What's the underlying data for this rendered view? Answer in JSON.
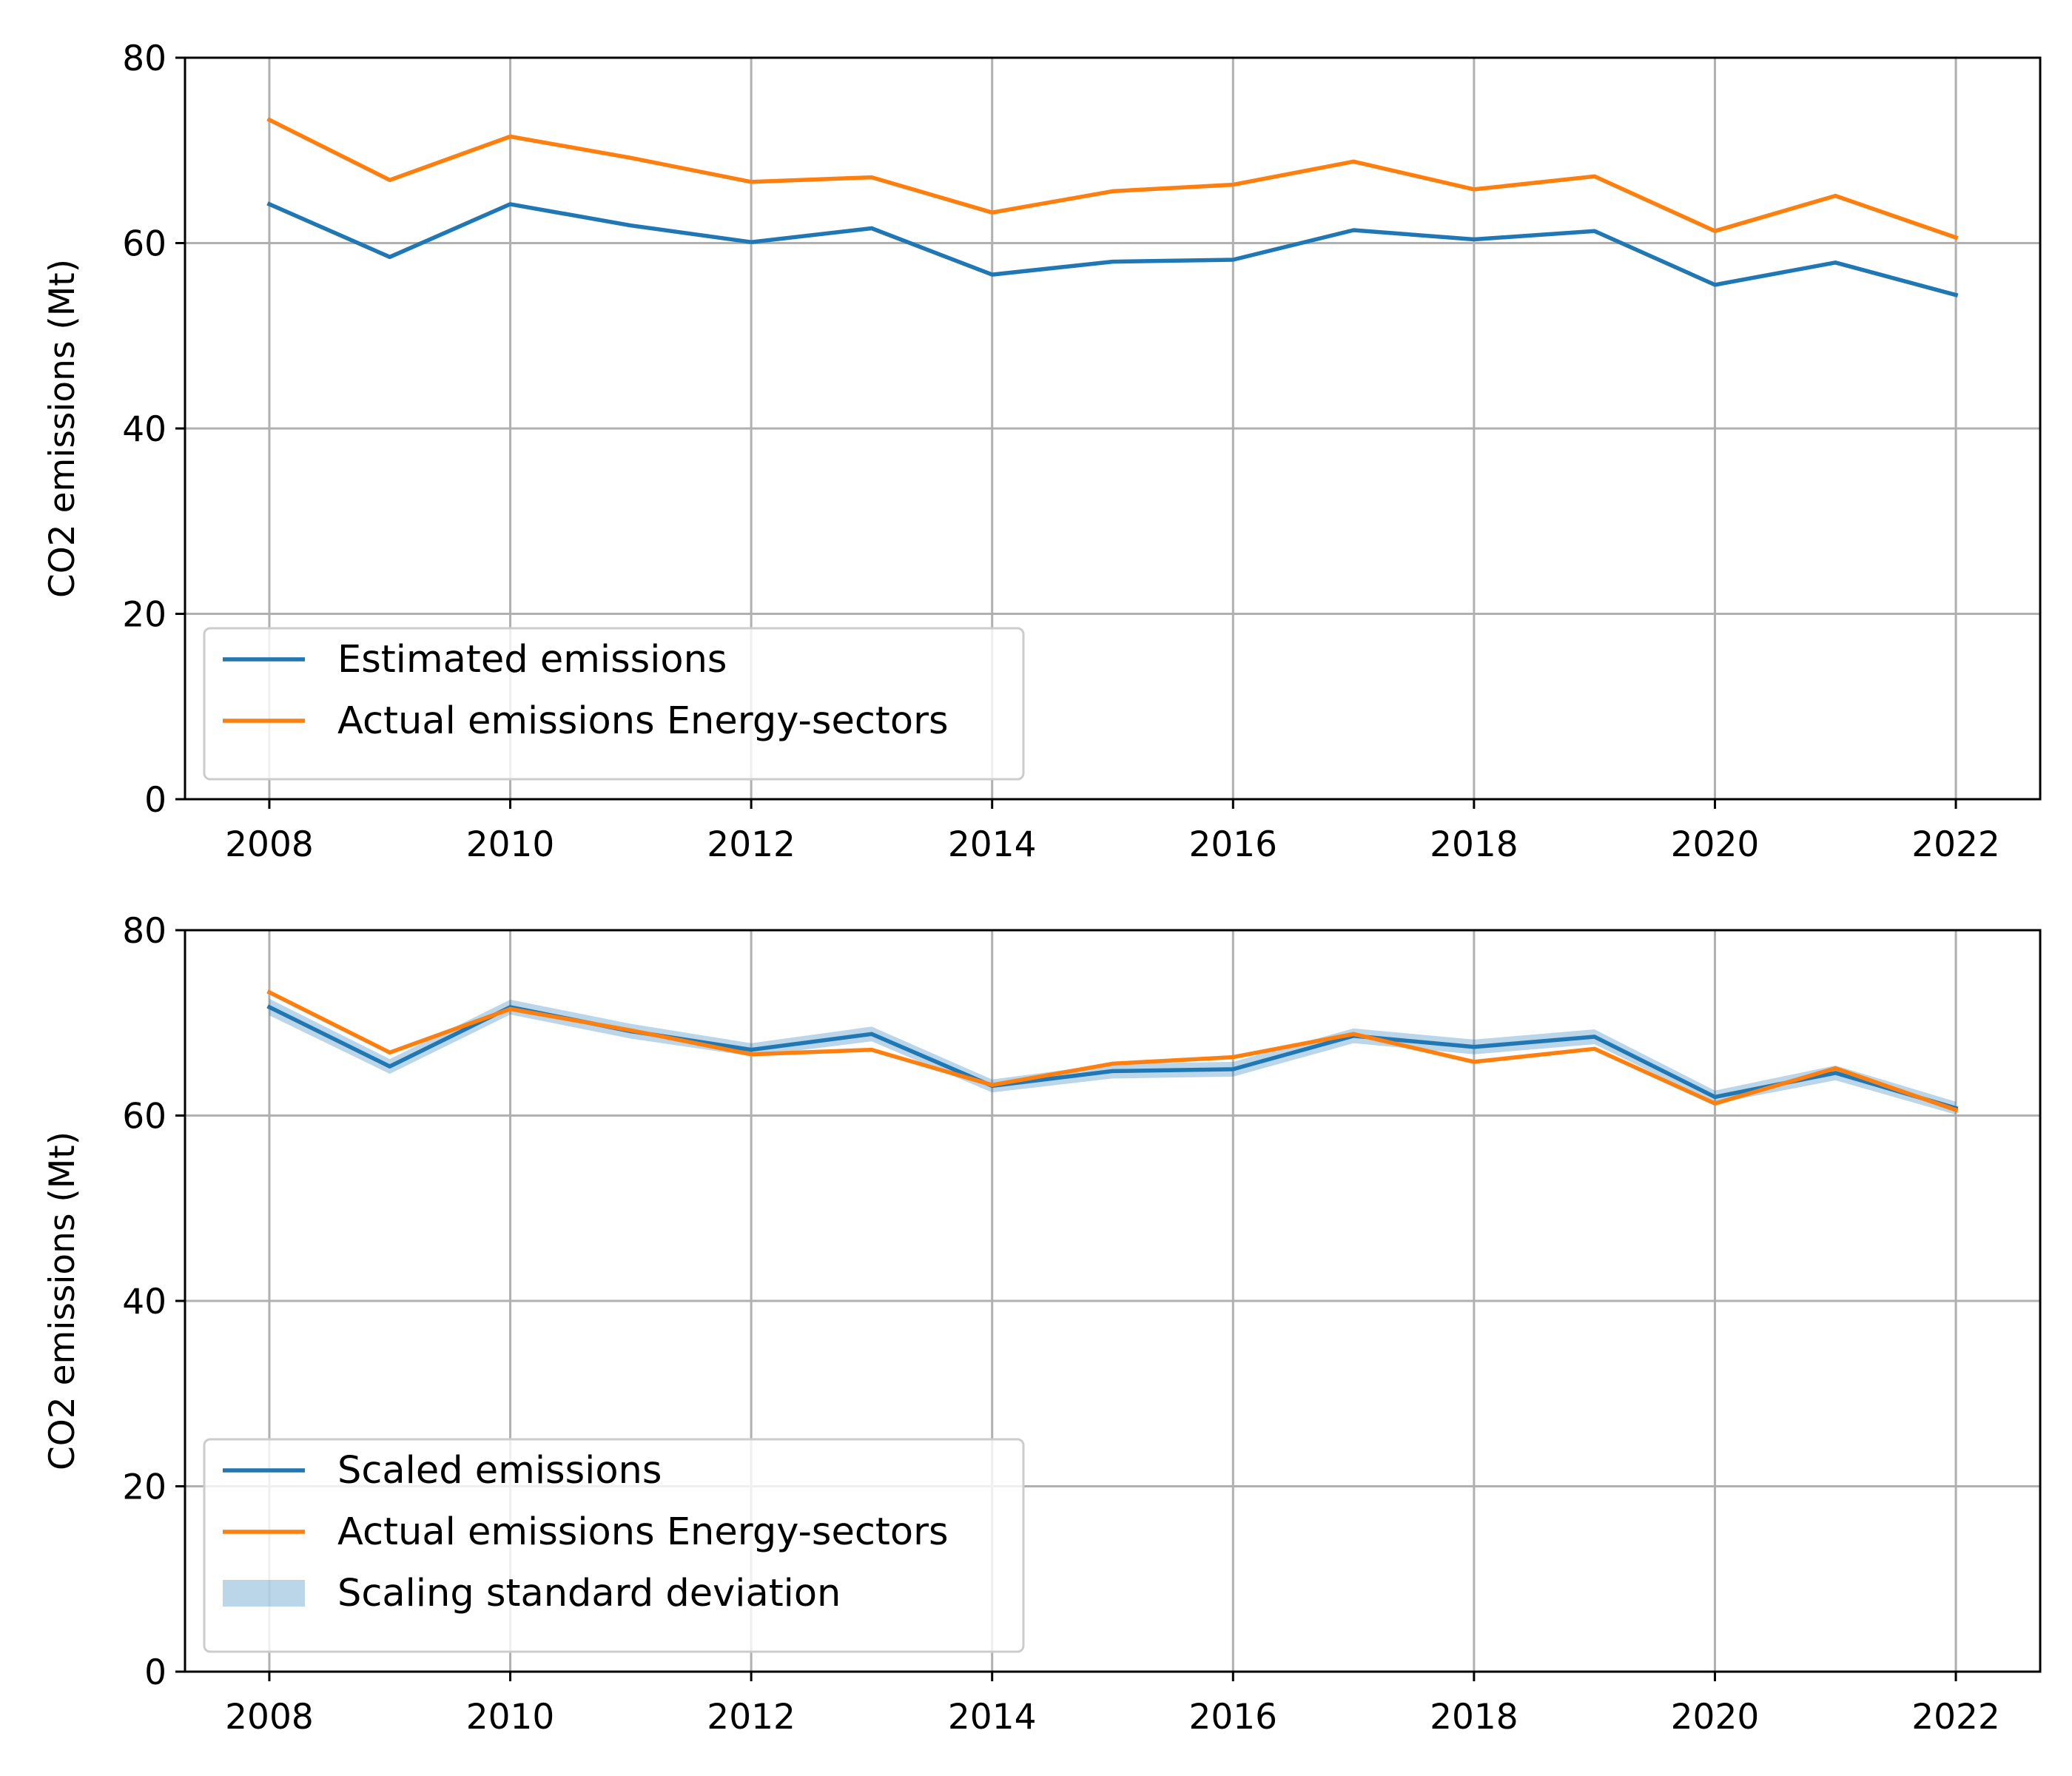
{
  "chart_data": [
    {
      "type": "line",
      "title": "",
      "xlabel": "",
      "ylabel": "CO2 emissions (Mt)",
      "xlim": [
        2007.3,
        2022.7
      ],
      "ylim": [
        0,
        80
      ],
      "xticks": [
        "2008",
        "2010",
        "2012",
        "2014",
        "2016",
        "2018",
        "2020",
        "2022"
      ],
      "yticks": [
        "0",
        "20",
        "40",
        "60",
        "80"
      ],
      "grid": true,
      "legend_position": "lower-left",
      "x": [
        2008,
        2009,
        2010,
        2011,
        2012,
        2013,
        2014,
        2015,
        2016,
        2017,
        2018,
        2019,
        2020,
        2021,
        2022
      ],
      "series": [
        {
          "name": "Estimated emissions",
          "color": "#1f77b4",
          "values": [
            64.2,
            58.5,
            64.2,
            61.9,
            60.1,
            61.6,
            56.6,
            58.0,
            58.2,
            61.4,
            60.4,
            61.3,
            55.5,
            57.9,
            54.4
          ]
        },
        {
          "name": "Actual emissions Energy-sectors",
          "color": "#ff7f0e",
          "values": [
            73.3,
            66.8,
            71.5,
            69.2,
            66.6,
            67.1,
            63.3,
            65.6,
            66.3,
            68.8,
            65.8,
            67.2,
            61.3,
            65.1,
            60.6
          ]
        }
      ]
    },
    {
      "type": "line",
      "title": "",
      "xlabel": "",
      "ylabel": "CO2 emissions (Mt)",
      "xlim": [
        2007.3,
        2022.7
      ],
      "ylim": [
        0,
        80
      ],
      "xticks": [
        "2008",
        "2010",
        "2012",
        "2014",
        "2016",
        "2018",
        "2020",
        "2022"
      ],
      "yticks": [
        "0",
        "20",
        "40",
        "60",
        "80"
      ],
      "grid": true,
      "legend_position": "lower-left",
      "x": [
        2008,
        2009,
        2010,
        2011,
        2012,
        2013,
        2014,
        2015,
        2016,
        2017,
        2018,
        2019,
        2020,
        2021,
        2022
      ],
      "series": [
        {
          "name": "Scaled emissions",
          "color": "#1f77b4",
          "values": [
            71.7,
            65.3,
            71.7,
            69.1,
            67.1,
            68.8,
            63.2,
            64.8,
            65.0,
            68.6,
            67.4,
            68.5,
            62.0,
            64.6,
            60.8
          ]
        },
        {
          "name": "Actual emissions Energy-sectors",
          "color": "#ff7f0e",
          "values": [
            73.3,
            66.8,
            71.5,
            69.2,
            66.6,
            67.1,
            63.3,
            65.6,
            66.3,
            68.8,
            65.8,
            67.2,
            61.3,
            65.1,
            60.6
          ]
        }
      ],
      "band": {
        "name": "Scaling standard deviation",
        "color": "#1f77b4",
        "lower": [
          70.8,
          64.5,
          70.9,
          68.3,
          66.4,
          68.0,
          62.5,
          64.0,
          64.2,
          67.8,
          66.6,
          67.7,
          61.3,
          63.8,
          60.1
        ],
        "upper": [
          72.6,
          66.1,
          72.5,
          69.9,
          67.8,
          69.6,
          63.9,
          65.6,
          65.8,
          69.4,
          68.2,
          69.3,
          62.7,
          65.4,
          61.5
        ]
      }
    }
  ]
}
